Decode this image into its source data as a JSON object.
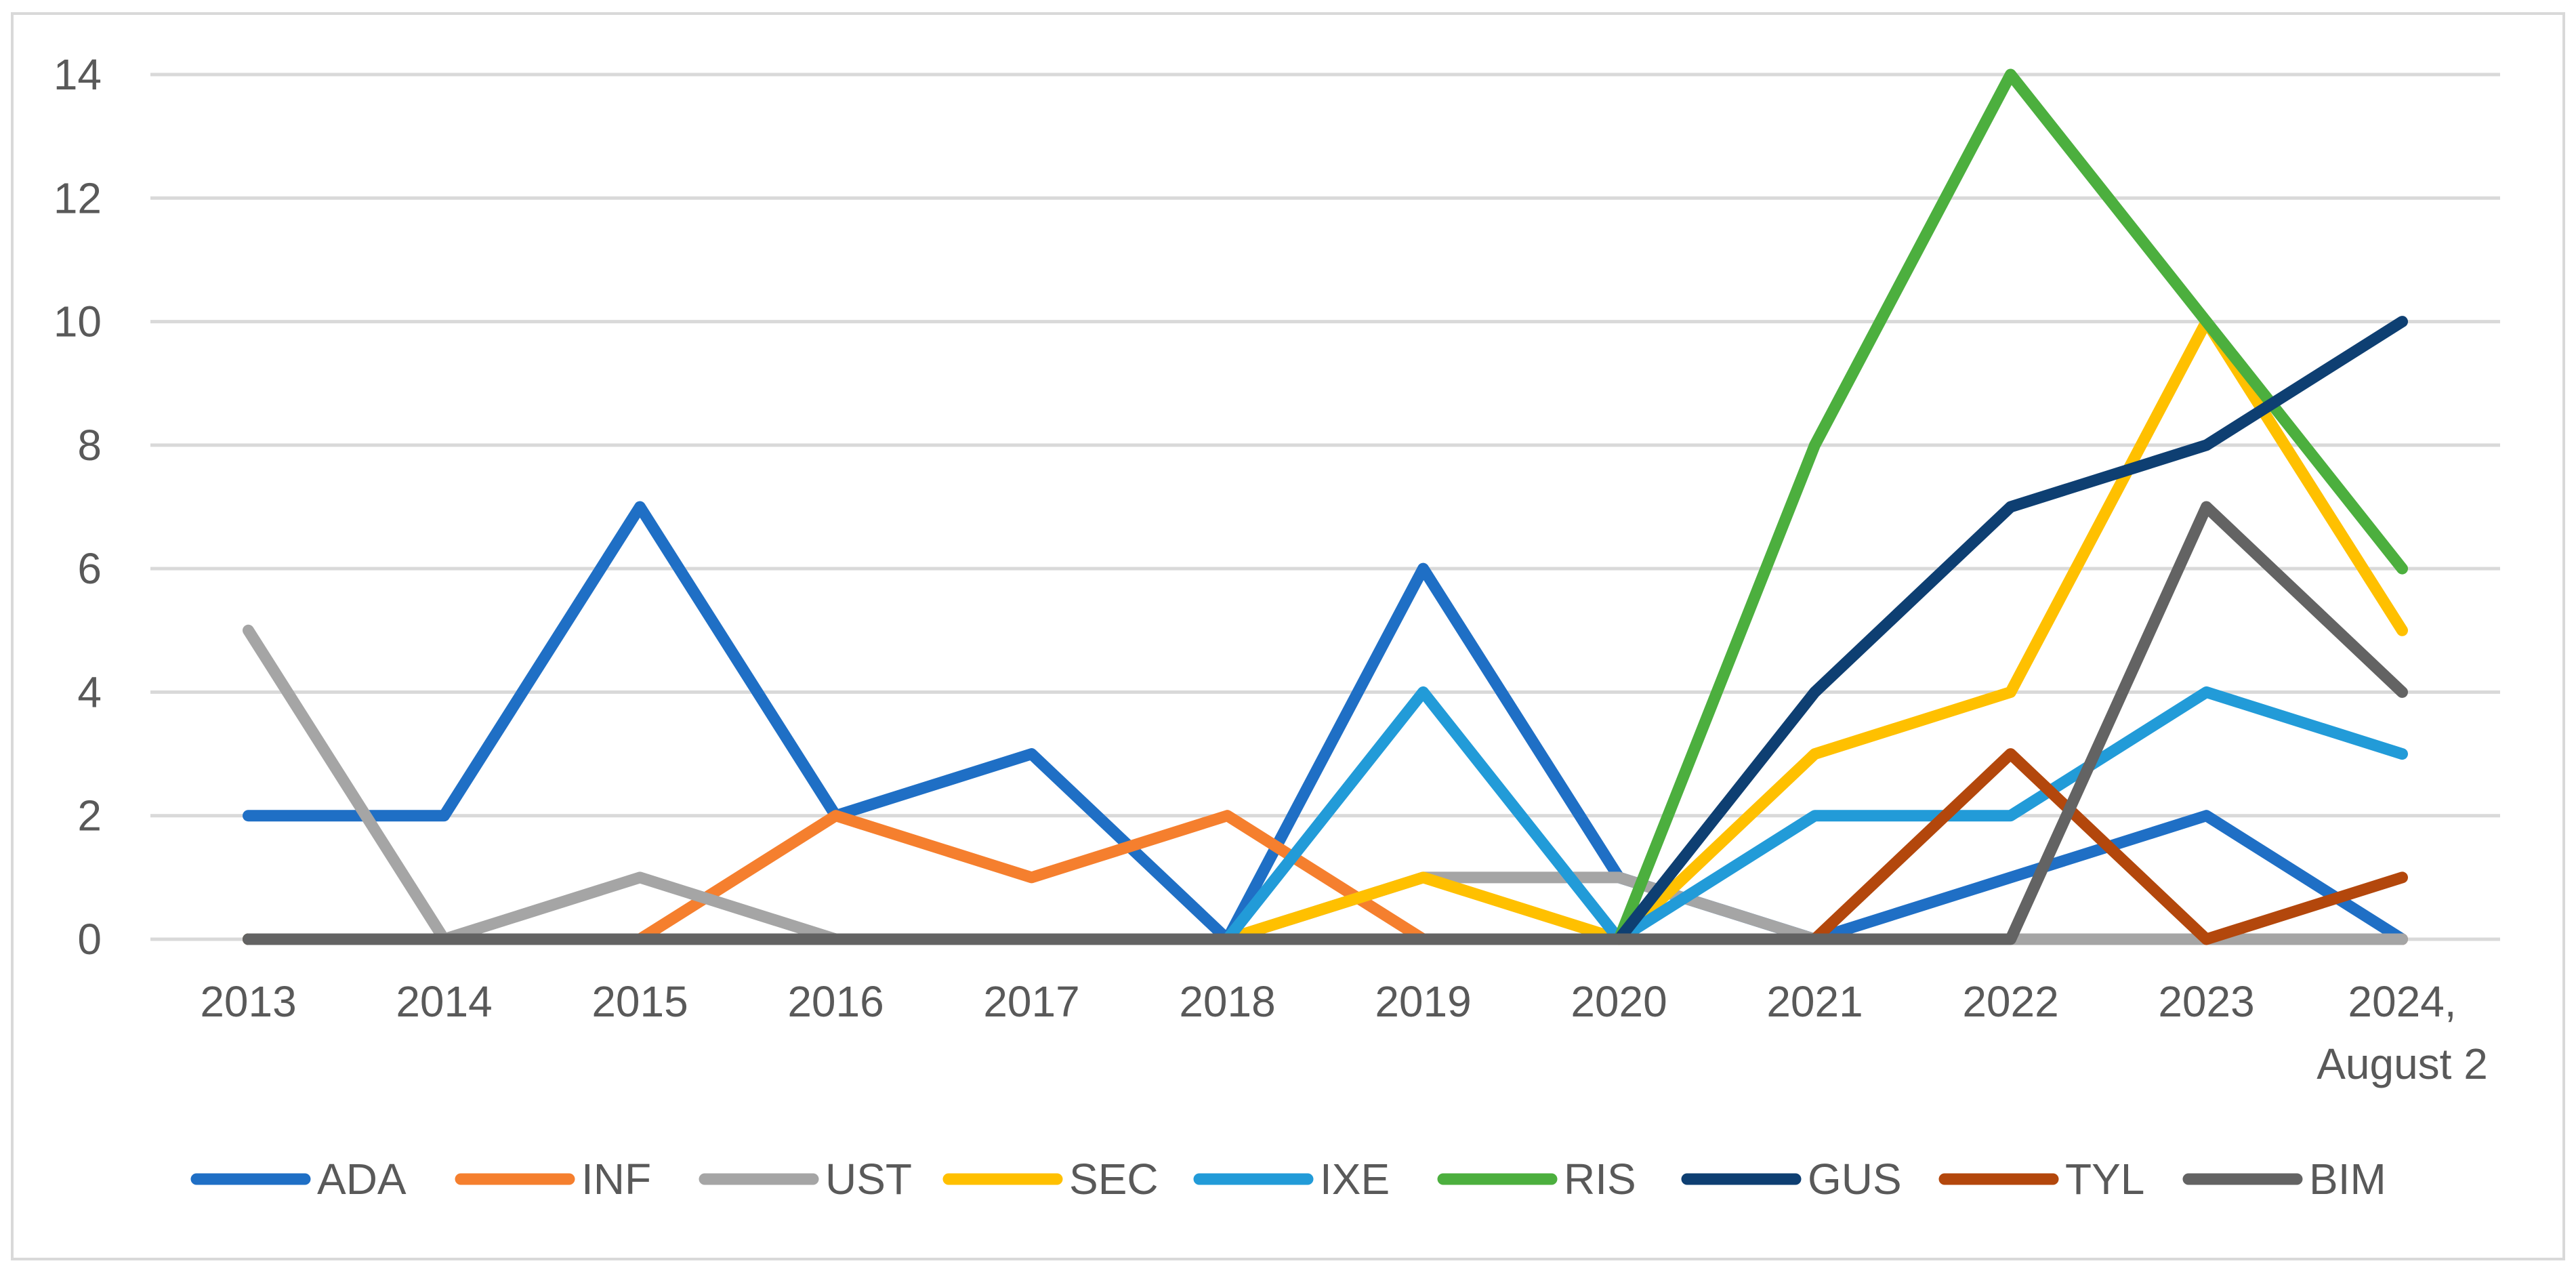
{
  "chart_data": {
    "type": "line",
    "title": "",
    "xlabel": "",
    "ylabel": "",
    "categories": [
      "2013",
      "2014",
      "2015",
      "2016",
      "2017",
      "2018",
      "2019",
      "2020",
      "2021",
      "2022",
      "2023",
      "2024, August 2"
    ],
    "category_lines": [
      [
        "2013"
      ],
      [
        "2014"
      ],
      [
        "2015"
      ],
      [
        "2016"
      ],
      [
        "2017"
      ],
      [
        "2018"
      ],
      [
        "2019"
      ],
      [
        "2020"
      ],
      [
        "2021"
      ],
      [
        "2022"
      ],
      [
        "2023"
      ],
      [
        "2024,",
        "August 2"
      ]
    ],
    "ylim": [
      0,
      14
    ],
    "yticks": [
      0,
      2,
      4,
      6,
      8,
      10,
      12,
      14
    ],
    "grid": true,
    "legend_position": "bottom",
    "series": [
      {
        "name": "ADA",
        "color": "#1F6FC5",
        "values": [
          2,
          2,
          7,
          2,
          3,
          0,
          6,
          1,
          0,
          1,
          2,
          0
        ]
      },
      {
        "name": "INF",
        "color": "#F57F2E",
        "values": [
          0,
          0,
          0,
          2,
          1,
          2,
          0,
          0,
          0,
          0,
          0,
          0
        ]
      },
      {
        "name": "UST",
        "color": "#A5A5A5",
        "values": [
          5,
          0,
          1,
          0,
          0,
          0,
          1,
          1,
          0,
          0,
          0,
          0
        ]
      },
      {
        "name": "SEC",
        "color": "#FFC000",
        "values": [
          0,
          0,
          0,
          0,
          0,
          0,
          1,
          0,
          3,
          4,
          10,
          5
        ]
      },
      {
        "name": "IXE",
        "color": "#229BD8",
        "values": [
          0,
          0,
          0,
          0,
          0,
          0,
          4,
          0,
          2,
          2,
          4,
          3
        ]
      },
      {
        "name": "RIS",
        "color": "#4CAF3E",
        "values": [
          0,
          0,
          0,
          0,
          0,
          0,
          0,
          0,
          8,
          14,
          10,
          6
        ]
      },
      {
        "name": "GUS",
        "color": "#0E3F72",
        "values": [
          0,
          0,
          0,
          0,
          0,
          0,
          0,
          0,
          4,
          7,
          8,
          10
        ]
      },
      {
        "name": "TYL",
        "color": "#B3470C",
        "values": [
          0,
          0,
          0,
          0,
          0,
          0,
          0,
          0,
          0,
          3,
          0,
          1
        ]
      },
      {
        "name": "BIM",
        "color": "#636363",
        "values": [
          0,
          0,
          0,
          0,
          0,
          0,
          0,
          0,
          0,
          0,
          7,
          4
        ]
      }
    ]
  }
}
